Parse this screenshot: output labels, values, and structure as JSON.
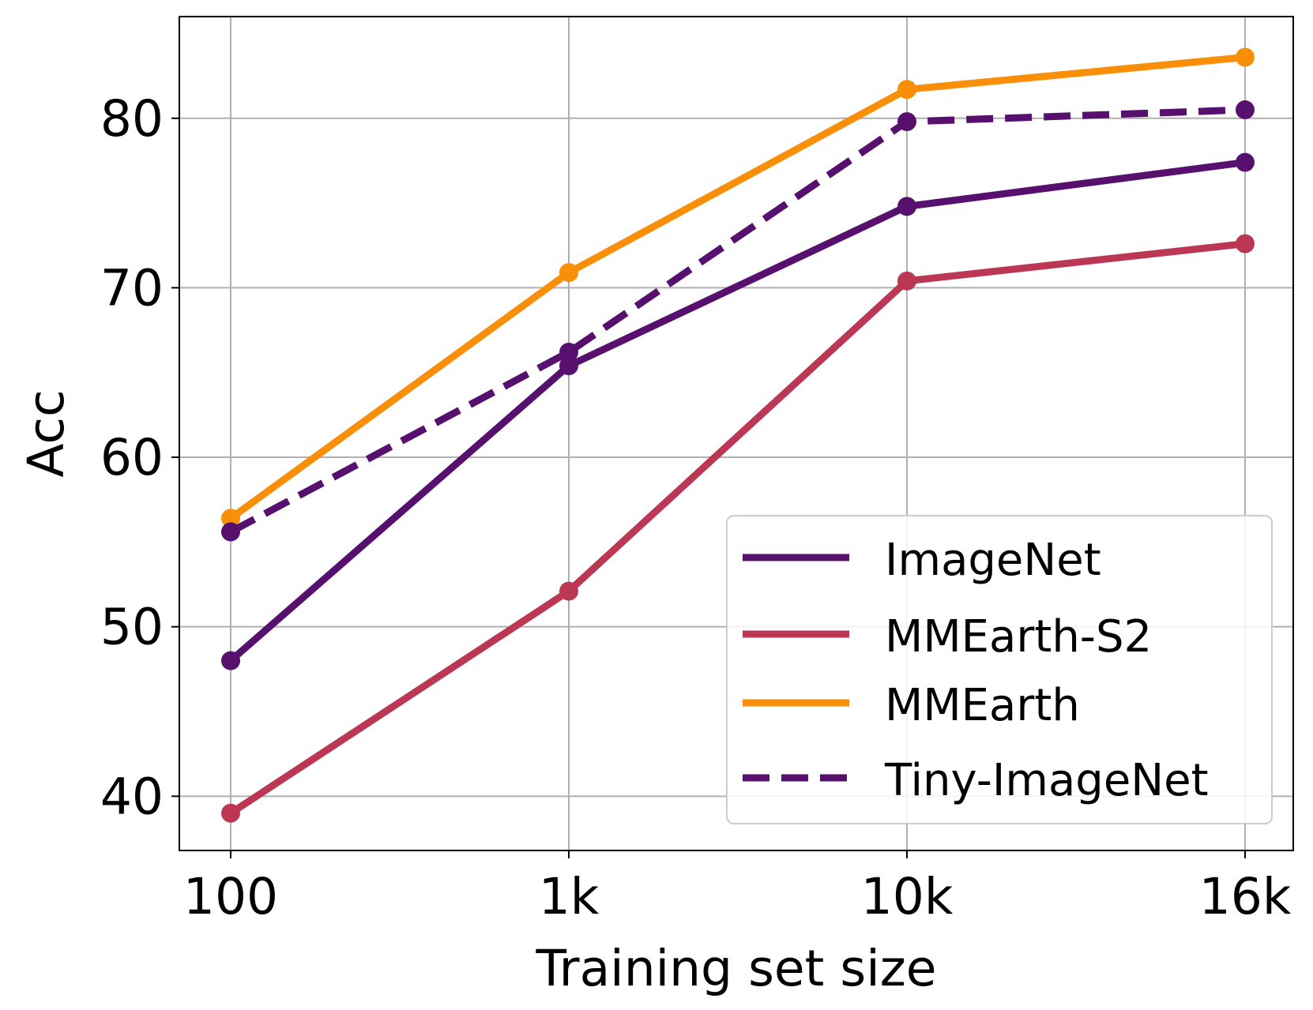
{
  "chart_data": {
    "type": "line",
    "title": "",
    "xlabel": "Training set size",
    "ylabel": "Acc",
    "categories": [
      "100",
      "1k",
      "10k",
      "16k"
    ],
    "ylim": [
      36.8,
      86
    ],
    "yticks": [
      40,
      50,
      60,
      70,
      80
    ],
    "grid": true,
    "legend_position": "lower-right",
    "series": [
      {
        "name": "ImageNet",
        "values": [
          48.0,
          65.4,
          74.8,
          77.4
        ],
        "color": "#57106e",
        "style": "solid"
      },
      {
        "name": "MMEarth-S2",
        "values": [
          39.0,
          52.1,
          70.4,
          72.6
        ],
        "color": "#bc3754",
        "style": "solid"
      },
      {
        "name": "MMEarth",
        "values": [
          56.4,
          70.9,
          81.7,
          83.6
        ],
        "color": "#f98e09",
        "style": "solid"
      },
      {
        "name": "Tiny-ImageNet",
        "values": [
          55.6,
          66.2,
          79.8,
          80.5
        ],
        "color": "#57106e",
        "style": "dashed"
      }
    ]
  }
}
